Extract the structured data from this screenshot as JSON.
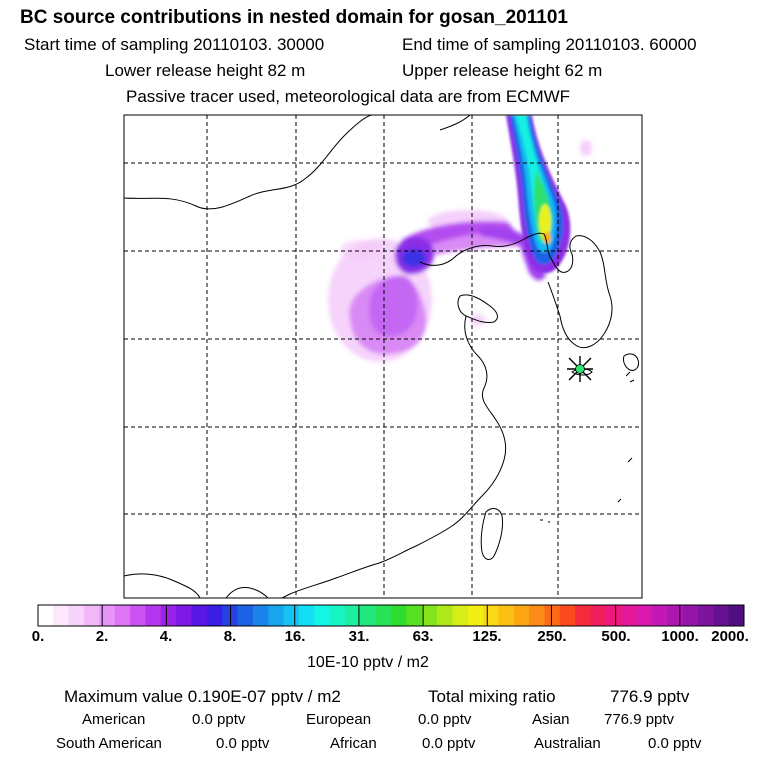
{
  "header": {
    "title": "BC  source contributions in nested domain for gosan_201101",
    "start_label": "Start time of sampling 20110103. 30000",
    "end_label": "End time of sampling 20110103. 60000",
    "lower_label": "Lower release height   82 m",
    "upper_label": "Upper release height   62 m",
    "tracer_label": "Passive tracer used, meteorological data are from ECMWF"
  },
  "colorbar": {
    "ticks": [
      "0.",
      "2.",
      "4.",
      "8.",
      "16.",
      "31.",
      "63.",
      "125.",
      "250.",
      "500.",
      "1000.",
      "2000."
    ],
    "units": "10E-10 pptv / m2",
    "colors": [
      "#ffffff",
      "#fbe8fd",
      "#f7d2fb",
      "#f1b7f9",
      "#e895f7",
      "#dd75f4",
      "#cc52f2",
      "#b436ee",
      "#9a22ea",
      "#7d1ae8",
      "#5a18e5",
      "#3a1ee3",
      "#2540e3",
      "#1d62e6",
      "#1a84ea",
      "#18a5ef",
      "#16c4f2",
      "#14dff2",
      "#14f5e6",
      "#18f5c4",
      "#1cf0a0",
      "#20e87c",
      "#26e254",
      "#30dc2e",
      "#56e020",
      "#82e41c",
      "#aeea1a",
      "#d6ee18",
      "#f2ee16",
      "#fbd816",
      "#fcc014",
      "#fca614",
      "#fc8a16",
      "#fb6a18",
      "#f94a20",
      "#f52a3a",
      "#f01e5a",
      "#ec187c",
      "#e6189a",
      "#d818ae",
      "#c418b4",
      "#ae16b0",
      "#9416a8",
      "#7c149c",
      "#661290",
      "#500e80"
    ]
  },
  "map": {
    "receptor_symbol": "star-receptor",
    "plume_colors": {
      "light": "#f3c4f9",
      "mid": "#d98af5",
      "violet": "#b44ef0",
      "purple": "#8a2ee8",
      "blue": "#3a30e6",
      "cyan": "#18b8f0",
      "aqua": "#14f0e0",
      "green": "#2ee070",
      "yellow": "#e8f020",
      "orange": "#fbb016"
    }
  },
  "summary": {
    "max_label": "Maximum value  0.190E-07 pptv / m2",
    "total_label": "Total mixing ratio",
    "total_value": "776.9 pptv",
    "american_label": "American",
    "american_value": "0.0 pptv",
    "european_label": "European",
    "european_value": "0.0 pptv",
    "asian_label": "Asian",
    "asian_value": "776.9 pptv",
    "south_american_label": "South American",
    "south_american_value": "0.0 pptv",
    "african_label": "African",
    "african_value": "0.0 pptv",
    "australian_label": "Australian",
    "australian_value": "0.0 pptv"
  }
}
